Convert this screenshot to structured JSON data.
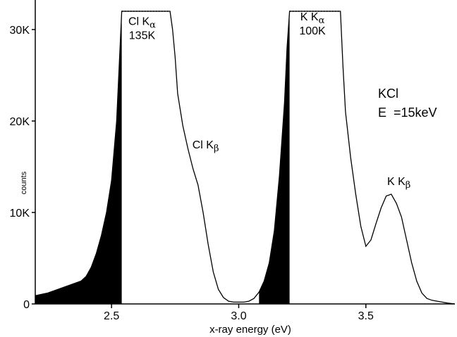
{
  "chart_data": {
    "type": "line",
    "title": "",
    "xlabel": "x-ray energy (eV)",
    "ylabel": "counts",
    "xlim": [
      2.2,
      3.85
    ],
    "ylim": [
      0,
      32000
    ],
    "x_ticks": [
      {
        "value": 2.5,
        "label": "2.5"
      },
      {
        "value": 3.0,
        "label": "3.0"
      },
      {
        "value": 3.5,
        "label": "3.5"
      }
    ],
    "y_ticks": [
      {
        "value": 0,
        "label": "0"
      },
      {
        "value": 10000,
        "label": "10K"
      },
      {
        "value": 20000,
        "label": "20K"
      },
      {
        "value": 30000,
        "label": "30K"
      }
    ],
    "grid": false,
    "legend": "none",
    "series": [
      {
        "color": "#000000",
        "x": [
          2.2,
          2.25,
          2.3,
          2.35,
          2.38,
          2.4,
          2.42,
          2.44,
          2.46,
          2.48,
          2.5,
          2.52,
          2.53,
          2.54,
          2.56,
          2.6,
          2.65,
          2.7,
          2.73,
          2.74,
          2.75,
          2.76,
          2.78,
          2.8,
          2.82,
          2.84,
          2.86,
          2.88,
          2.9,
          2.92,
          2.94,
          2.96,
          2.98,
          3.0,
          3.02,
          3.04,
          3.06,
          3.08,
          3.1,
          3.12,
          3.14,
          3.16,
          3.18,
          3.19,
          3.2,
          3.22,
          3.26,
          3.3,
          3.34,
          3.38,
          3.4,
          3.41,
          3.42,
          3.44,
          3.46,
          3.48,
          3.5,
          3.52,
          3.54,
          3.56,
          3.58,
          3.6,
          3.62,
          3.64,
          3.66,
          3.68,
          3.7,
          3.72,
          3.74,
          3.76,
          3.78,
          3.8,
          3.82,
          3.85
        ],
        "y": [
          900,
          1200,
          1700,
          2200,
          2500,
          3000,
          4000,
          5500,
          7500,
          10000,
          13500,
          20000,
          26000,
          32000,
          32000,
          32000,
          32000,
          32000,
          32000,
          30000,
          27000,
          23000,
          19500,
          17000,
          14800,
          13000,
          10000,
          6500,
          3500,
          1600,
          700,
          300,
          200,
          200,
          200,
          300,
          600,
          1300,
          2500,
          4500,
          8000,
          14000,
          22000,
          28000,
          32000,
          32000,
          32000,
          32000,
          32000,
          32000,
          32000,
          26000,
          21000,
          16000,
          12000,
          8500,
          6300,
          7000,
          8800,
          10500,
          11800,
          12000,
          11000,
          9500,
          7000,
          4500,
          2500,
          1200,
          600,
          400,
          300,
          200,
          100,
          0
        ],
        "fill_under_x_max": [
          3.0,
          3.2
        ],
        "fill_segments": [
          [
            2.2,
            2.54
          ],
          [
            3.08,
            3.2
          ]
        ]
      }
    ],
    "saturated_level": 32000,
    "annotations": [
      {
        "id": "cl-ka",
        "x": 2.62,
        "y": 30500,
        "text": "Cl K",
        "greek": "α",
        "value": "135K"
      },
      {
        "id": "cl-kb",
        "x": 2.87,
        "y": 17000,
        "text": "Cl K",
        "greek": "β"
      },
      {
        "id": "k-ka",
        "x": 3.29,
        "y": 31000,
        "text": "K K",
        "greek": "α",
        "value": "100K"
      },
      {
        "id": "k-kb",
        "x": 3.63,
        "y": 13000,
        "text": "K K",
        "greek": "β"
      }
    ],
    "sample_label": {
      "line1": "KCl",
      "line2": "E  =15keV"
    }
  }
}
